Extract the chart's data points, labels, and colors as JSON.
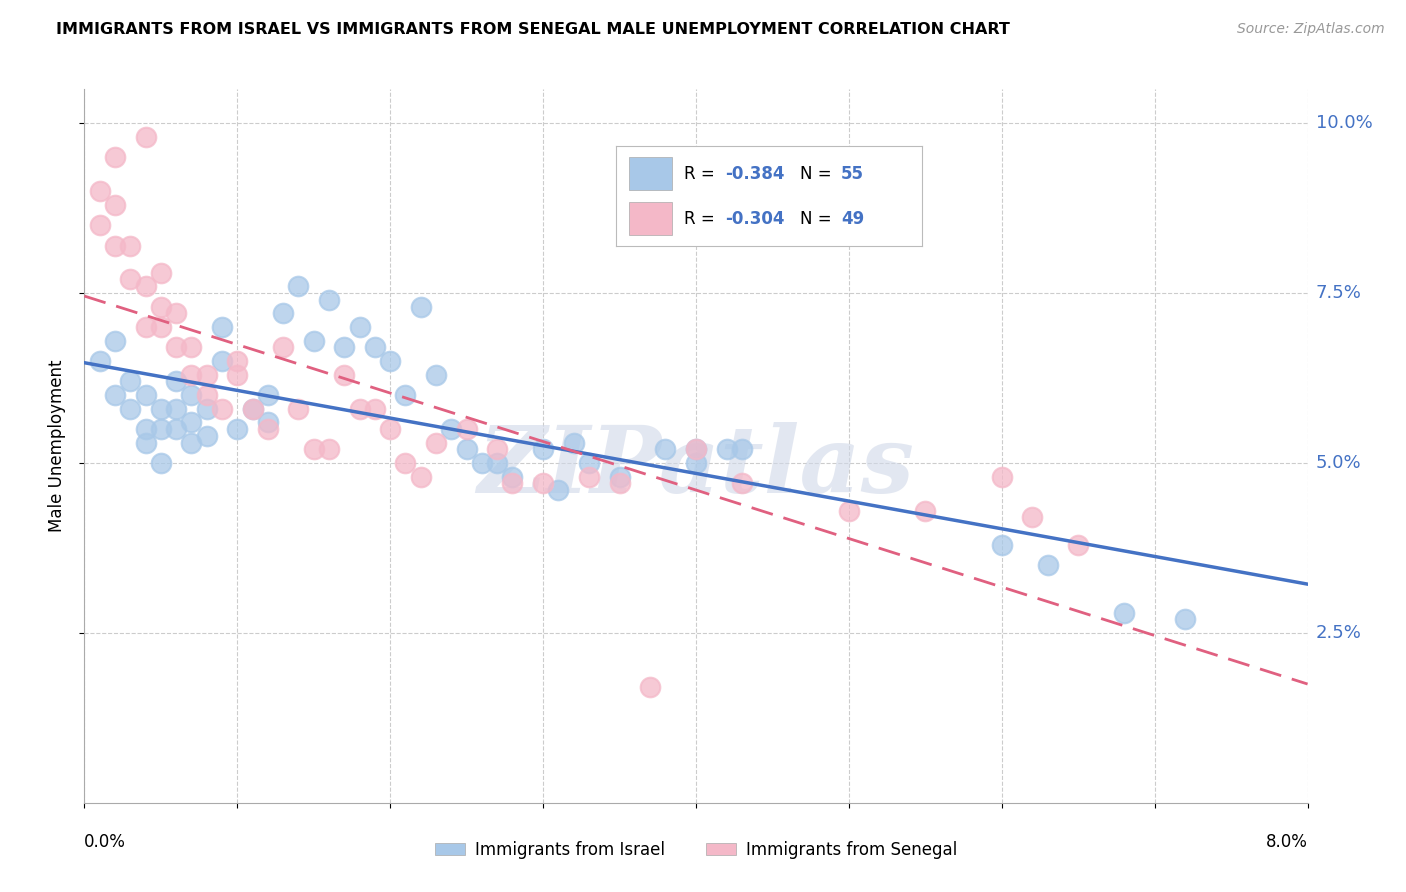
{
  "title": "IMMIGRANTS FROM ISRAEL VS IMMIGRANTS FROM SENEGAL MALE UNEMPLOYMENT CORRELATION CHART",
  "source": "Source: ZipAtlas.com",
  "ylabel": "Male Unemployment",
  "xlim": [
    0.0,
    0.08
  ],
  "ylim": [
    0.0,
    0.105
  ],
  "yticks": [
    0.025,
    0.05,
    0.075,
    0.1
  ],
  "ytick_labels": [
    "2.5%",
    "5.0%",
    "7.5%",
    "10.0%"
  ],
  "israel_color": "#a8c8e8",
  "senegal_color": "#f4b8c8",
  "israel_line_color": "#4472c4",
  "senegal_line_color": "#e06080",
  "watermark": "ZIPatlas",
  "israel_points": [
    [
      0.001,
      0.065
    ],
    [
      0.002,
      0.06
    ],
    [
      0.002,
      0.068
    ],
    [
      0.003,
      0.062
    ],
    [
      0.003,
      0.058
    ],
    [
      0.004,
      0.055
    ],
    [
      0.004,
      0.06
    ],
    [
      0.004,
      0.053
    ],
    [
      0.005,
      0.058
    ],
    [
      0.005,
      0.055
    ],
    [
      0.005,
      0.05
    ],
    [
      0.006,
      0.062
    ],
    [
      0.006,
      0.058
    ],
    [
      0.006,
      0.055
    ],
    [
      0.007,
      0.06
    ],
    [
      0.007,
      0.056
    ],
    [
      0.007,
      0.053
    ],
    [
      0.008,
      0.058
    ],
    [
      0.008,
      0.054
    ],
    [
      0.009,
      0.07
    ],
    [
      0.009,
      0.065
    ],
    [
      0.01,
      0.055
    ],
    [
      0.011,
      0.058
    ],
    [
      0.012,
      0.06
    ],
    [
      0.012,
      0.056
    ],
    [
      0.013,
      0.072
    ],
    [
      0.014,
      0.076
    ],
    [
      0.015,
      0.068
    ],
    [
      0.016,
      0.074
    ],
    [
      0.017,
      0.067
    ],
    [
      0.018,
      0.07
    ],
    [
      0.019,
      0.067
    ],
    [
      0.02,
      0.065
    ],
    [
      0.021,
      0.06
    ],
    [
      0.022,
      0.073
    ],
    [
      0.023,
      0.063
    ],
    [
      0.024,
      0.055
    ],
    [
      0.025,
      0.052
    ],
    [
      0.026,
      0.05
    ],
    [
      0.027,
      0.05
    ],
    [
      0.028,
      0.048
    ],
    [
      0.03,
      0.052
    ],
    [
      0.031,
      0.046
    ],
    [
      0.032,
      0.053
    ],
    [
      0.033,
      0.05
    ],
    [
      0.035,
      0.048
    ],
    [
      0.038,
      0.052
    ],
    [
      0.04,
      0.052
    ],
    [
      0.04,
      0.05
    ],
    [
      0.042,
      0.052
    ],
    [
      0.043,
      0.052
    ],
    [
      0.06,
      0.038
    ],
    [
      0.063,
      0.035
    ],
    [
      0.068,
      0.028
    ],
    [
      0.072,
      0.027
    ]
  ],
  "senegal_points": [
    [
      0.001,
      0.09
    ],
    [
      0.001,
      0.085
    ],
    [
      0.002,
      0.095
    ],
    [
      0.002,
      0.088
    ],
    [
      0.002,
      0.082
    ],
    [
      0.003,
      0.082
    ],
    [
      0.003,
      0.077
    ],
    [
      0.004,
      0.076
    ],
    [
      0.004,
      0.07
    ],
    [
      0.004,
      0.098
    ],
    [
      0.005,
      0.073
    ],
    [
      0.005,
      0.078
    ],
    [
      0.005,
      0.07
    ],
    [
      0.006,
      0.067
    ],
    [
      0.006,
      0.072
    ],
    [
      0.007,
      0.067
    ],
    [
      0.007,
      0.063
    ],
    [
      0.008,
      0.063
    ],
    [
      0.008,
      0.06
    ],
    [
      0.009,
      0.058
    ],
    [
      0.01,
      0.065
    ],
    [
      0.01,
      0.063
    ],
    [
      0.011,
      0.058
    ],
    [
      0.012,
      0.055
    ],
    [
      0.013,
      0.067
    ],
    [
      0.014,
      0.058
    ],
    [
      0.015,
      0.052
    ],
    [
      0.016,
      0.052
    ],
    [
      0.017,
      0.063
    ],
    [
      0.018,
      0.058
    ],
    [
      0.019,
      0.058
    ],
    [
      0.02,
      0.055
    ],
    [
      0.021,
      0.05
    ],
    [
      0.022,
      0.048
    ],
    [
      0.023,
      0.053
    ],
    [
      0.025,
      0.055
    ],
    [
      0.027,
      0.052
    ],
    [
      0.028,
      0.047
    ],
    [
      0.03,
      0.047
    ],
    [
      0.033,
      0.048
    ],
    [
      0.035,
      0.047
    ],
    [
      0.04,
      0.052
    ],
    [
      0.043,
      0.047
    ],
    [
      0.05,
      0.043
    ],
    [
      0.055,
      0.043
    ],
    [
      0.06,
      0.048
    ],
    [
      0.062,
      0.042
    ],
    [
      0.065,
      0.038
    ],
    [
      0.037,
      0.017
    ]
  ]
}
